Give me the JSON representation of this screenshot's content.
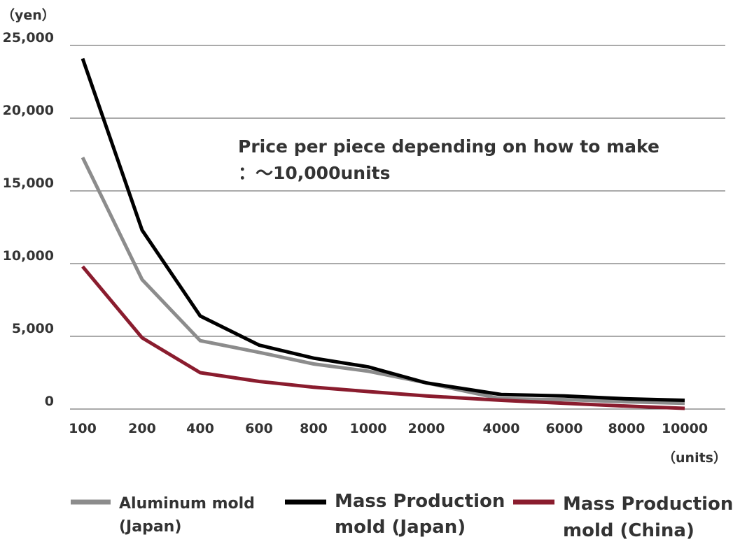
{
  "chart_data": {
    "type": "line",
    "title_line1": "Price per piece depending on how to make",
    "title_line2": "：～10,000units",
    "ylabel": "（yen）",
    "xlabel": "（units）",
    "ylim": [
      0,
      25000
    ],
    "yticks": [
      0,
      5000,
      10000,
      15000,
      20000,
      25000
    ],
    "ytick_labels": [
      "0",
      "5,000",
      "10,000",
      "15,000",
      "20,000",
      "25,000"
    ],
    "categories": [
      "100",
      "200",
      "400",
      "600",
      "800",
      "1000",
      "2000",
      "4000",
      "6000",
      "8000",
      "10000"
    ],
    "grid": true,
    "legend_position": "bottom",
    "series": [
      {
        "name_line1": "Aluminum mold",
        "name_line2": "(Japan)",
        "color": "#8c8c8c",
        "values": [
          17300,
          8900,
          4700,
          3900,
          3100,
          2600,
          1800,
          700,
          650,
          500,
          400
        ]
      },
      {
        "name_line1": "Mass Production",
        "name_line2": "mold (Japan)",
        "color": "#000000",
        "values": [
          24100,
          12300,
          6400,
          4400,
          3500,
          2900,
          1800,
          1000,
          900,
          700,
          600
        ]
      },
      {
        "name_line1": "Mass Production",
        "name_line2": "mold (China)",
        "color": "#8a1c2e",
        "values": [
          9800,
          4900,
          2500,
          1900,
          1500,
          1200,
          900,
          600,
          400,
          200,
          50
        ]
      }
    ]
  }
}
